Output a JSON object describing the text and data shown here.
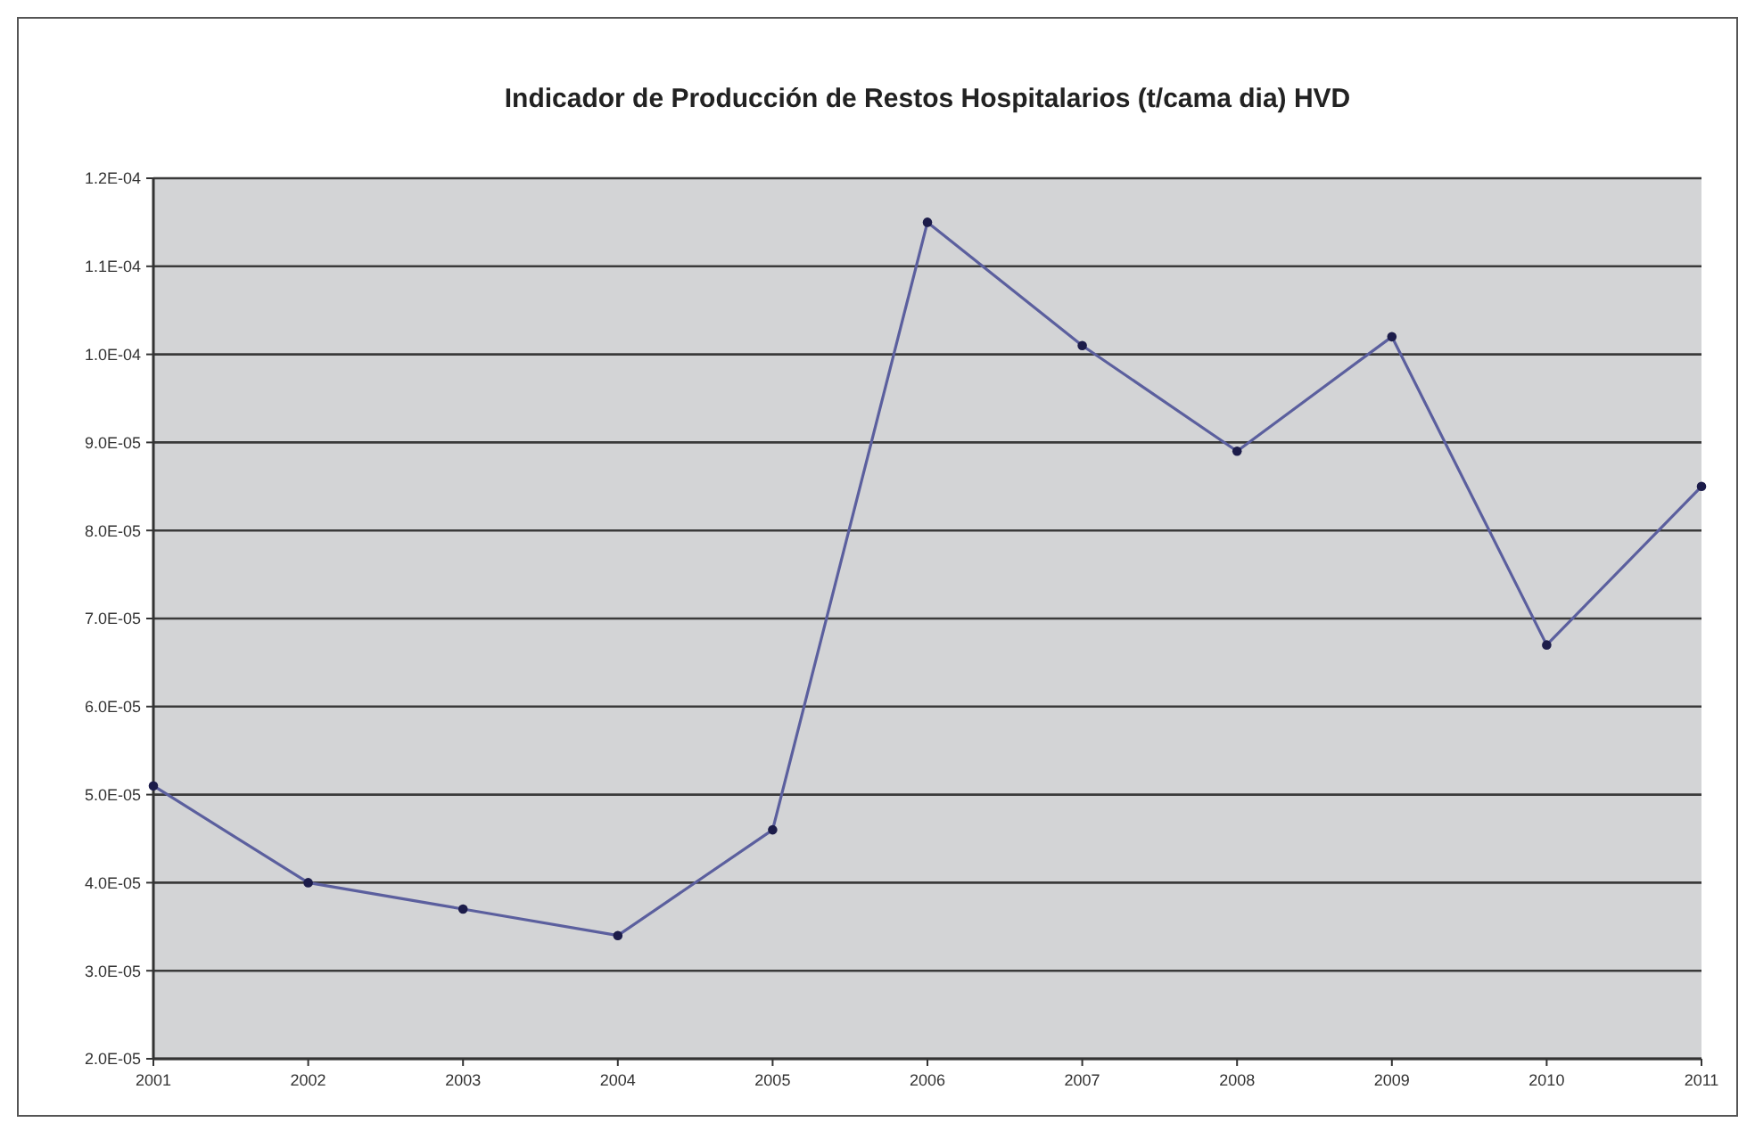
{
  "chart_data": {
    "type": "line",
    "title": "Indicador de Producción de Restos Hospitalarios (t/cama dia) HVD",
    "categories": [
      "2001",
      "2002",
      "2003",
      "2004",
      "2005",
      "2006",
      "2007",
      "2008",
      "2009",
      "2010",
      "2011"
    ],
    "series": [
      {
        "color": "#5b5f9e",
        "values": [
          5.1e-05,
          4e-05,
          3.7e-05,
          3.4e-05,
          4.6e-05,
          0.000115,
          0.000101,
          8.9e-05,
          0.000102,
          6.7e-05,
          8.5e-05
        ]
      }
    ],
    "ylim": [
      2e-05,
      0.00012
    ],
    "yticks": [
      {
        "value": 2e-05,
        "label": "2.0E-05"
      },
      {
        "value": 3e-05,
        "label": "3.0E-05"
      },
      {
        "value": 4e-05,
        "label": "4.0E-05"
      },
      {
        "value": 5e-05,
        "label": "5.0E-05"
      },
      {
        "value": 6e-05,
        "label": "6.0E-05"
      },
      {
        "value": 7e-05,
        "label": "7.0E-05"
      },
      {
        "value": 8e-05,
        "label": "8.0E-05"
      },
      {
        "value": 9e-05,
        "label": "9.0E-05"
      },
      {
        "value": 0.0001,
        "label": "1.0E-04"
      },
      {
        "value": 0.00011,
        "label": "1.1E-04"
      },
      {
        "value": 0.00012,
        "label": "1.2E-04"
      }
    ],
    "grid": "y",
    "marker": "circle"
  }
}
